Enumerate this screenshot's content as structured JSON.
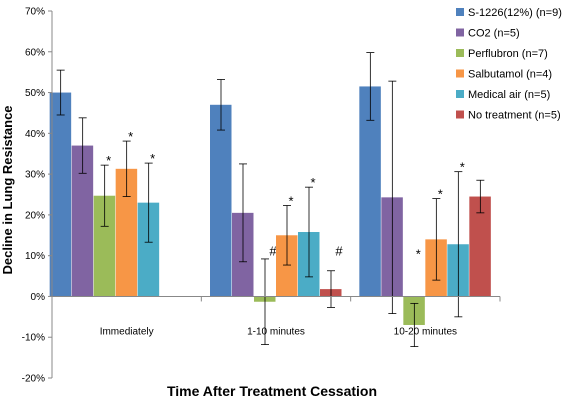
{
  "chart_data": {
    "type": "bar",
    "xlabel": "Time After Treatment Cessation",
    "ylabel": "Decline in Lung Resistance",
    "ylim": [
      -20,
      70
    ],
    "yticks": [
      -20,
      -10,
      0,
      10,
      20,
      30,
      40,
      50,
      60,
      70
    ],
    "ytick_labels": [
      "-20%",
      "-10%",
      "0%",
      "10%",
      "20%",
      "30%",
      "40%",
      "50%",
      "60%",
      "70%"
    ],
    "categories": [
      "Immediately",
      "1-10 minutes",
      "10-20 minutes"
    ],
    "legend_position": "right",
    "series": [
      {
        "name": "S-1226(12%) (n=9)",
        "color": "#4F81BD",
        "values": [
          50,
          47,
          51.5
        ],
        "errors": [
          5.5,
          6.2,
          8.3
        ],
        "markers": [
          "",
          "",
          ""
        ]
      },
      {
        "name": "CO2  (n=5)",
        "color": "#8064A2",
        "values": [
          37,
          20.5,
          24.3
        ],
        "errors": [
          6.8,
          12,
          28.5
        ],
        "markers": [
          "",
          "",
          ""
        ]
      },
      {
        "name": "Perflubron (n=7)",
        "color": "#9BBB59",
        "values": [
          24.7,
          -1.3,
          -7
        ],
        "errors": [
          7.5,
          10.5,
          5.3
        ],
        "markers": [
          "*",
          "#",
          "*"
        ]
      },
      {
        "name": "Salbutamol (n=4)",
        "color": "#F79646",
        "values": [
          31.3,
          15,
          14
        ],
        "errors": [
          6.8,
          7.3,
          10
        ],
        "markers": [
          "*",
          "*",
          "*"
        ]
      },
      {
        "name": "Medical air (n=5)",
        "color": "#4BACC6",
        "values": [
          23,
          15.8,
          12.8
        ],
        "errors": [
          9.7,
          11,
          17.8
        ],
        "markers": [
          "*",
          "*",
          "*"
        ]
      },
      {
        "name": "No treatment (n=5)",
        "color": "#C0504D",
        "values": [
          null,
          1.8,
          24.5
        ],
        "errors": [
          null,
          4.5,
          4
        ],
        "markers": [
          "",
          "#",
          ""
        ]
      }
    ]
  }
}
